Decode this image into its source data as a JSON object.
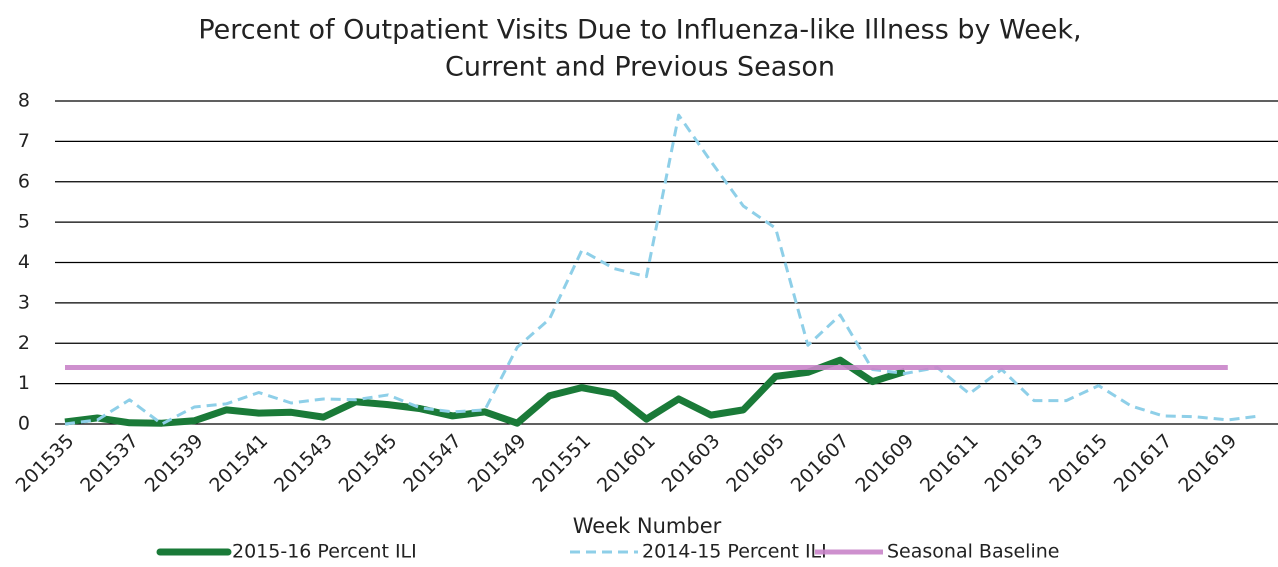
{
  "chart_data": {
    "type": "line",
    "title": [
      "Percent of Outpatient Visits Due to Influenza-like Illness by Week,",
      "Current and Previous Season"
    ],
    "xlabel": "Week Number",
    "categories": [
      "201535",
      null,
      "201537",
      null,
      "201539",
      null,
      "201541",
      null,
      "201543",
      null,
      "201545",
      null,
      "201547",
      null,
      "201549",
      null,
      "201551",
      null,
      "201601",
      null,
      "201603",
      null,
      "201605",
      null,
      "201607",
      null,
      "201609",
      null,
      "201611",
      null,
      "201613",
      null,
      "201615",
      null,
      "201617",
      null,
      "201619",
      null
    ],
    "series": [
      {
        "name": "2015-16 Percent ILI",
        "color": "#1a7a38",
        "line_style": "solid",
        "values": [
          0.05,
          0.15,
          0.03,
          0.02,
          0.08,
          0.35,
          0.27,
          0.29,
          0.17,
          0.55,
          0.48,
          0.38,
          0.2,
          0.3,
          0.02,
          0.7,
          0.9,
          0.75,
          0.12,
          0.62,
          0.22,
          0.35,
          1.18,
          1.28,
          1.58,
          1.05,
          1.3,
          null,
          null,
          null,
          null,
          null,
          null,
          null,
          null,
          null,
          null,
          null
        ]
      },
      {
        "name": "2014-15 Percent ILI",
        "color": "#8ecfe8",
        "line_style": "dashed",
        "values": [
          0.0,
          0.1,
          0.6,
          0.0,
          0.42,
          0.5,
          0.78,
          0.52,
          0.62,
          0.6,
          0.72,
          0.4,
          0.3,
          0.35,
          1.9,
          2.6,
          4.3,
          3.85,
          3.65,
          7.65,
          6.5,
          5.4,
          4.85,
          1.95,
          2.7,
          1.35,
          1.25,
          1.4,
          0.75,
          1.35,
          0.58,
          0.58,
          0.95,
          0.45,
          0.2,
          0.18,
          0.1,
          0.2
        ]
      },
      {
        "name": "Seasonal Baseline",
        "color": "#c984c9",
        "line_style": "thick",
        "values": [
          1.4,
          1.4,
          1.4,
          1.4,
          1.4,
          1.4,
          1.4,
          1.4,
          1.4,
          1.4,
          1.4,
          1.4,
          1.4,
          1.4,
          1.4,
          1.4,
          1.4,
          1.4,
          1.4,
          1.4,
          1.4,
          1.4,
          1.4,
          1.4,
          1.4,
          1.4,
          1.4,
          1.4,
          1.4,
          1.4,
          1.4,
          1.4,
          1.4,
          1.4,
          1.4,
          1.4,
          1.4,
          null
        ]
      }
    ],
    "ylim": [
      0,
      8
    ],
    "yticks": [
      0,
      1,
      2,
      3,
      4,
      5,
      6,
      7,
      8
    ],
    "grid": true,
    "legend": "bottom"
  }
}
